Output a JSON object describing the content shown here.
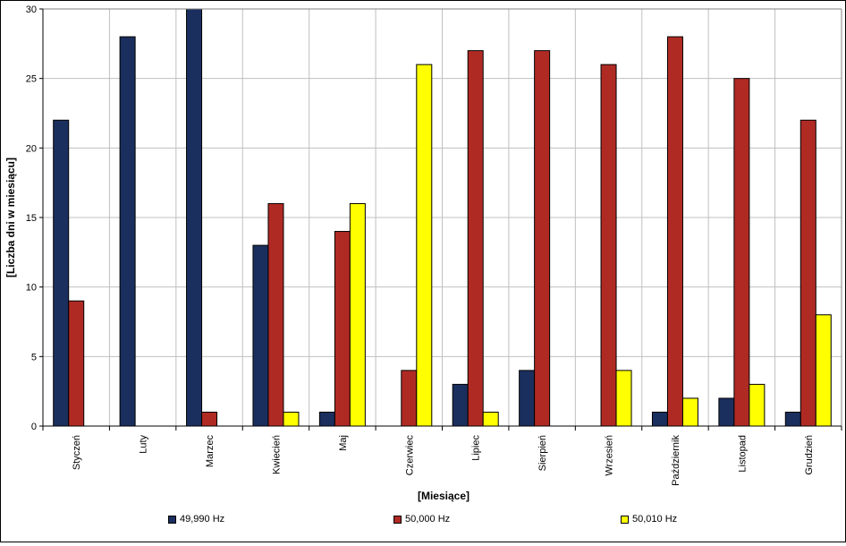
{
  "chart_data": {
    "type": "bar",
    "title": "",
    "xlabel": "[Miesiące]",
    "ylabel": "[Liczba dni w miesiącu]",
    "ylim": [
      0,
      30
    ],
    "yticks": [
      "0",
      "5",
      "10",
      "15",
      "20",
      "25",
      "30"
    ],
    "grid": true,
    "legend_position": "bottom",
    "categories": [
      "Styczeń",
      "Luty",
      "Marzec",
      "Kwiecień",
      "Maj",
      "Czerwiec",
      "Lipiec",
      "Sierpień",
      "Wrzesień",
      "Październik",
      "Listopad",
      "Grudzień"
    ],
    "series": [
      {
        "name": "49,990 Hz",
        "color": "#1b2f5e",
        "values": [
          22,
          28,
          30,
          13,
          1,
          0,
          3,
          4,
          0,
          1,
          2,
          1
        ]
      },
      {
        "name": "50,000 Hz",
        "color": "#b02a24",
        "values": [
          9,
          0,
          1,
          16,
          14,
          4,
          27,
          27,
          26,
          28,
          25,
          22
        ]
      },
      {
        "name": "50,010 Hz",
        "color": "#ffff00",
        "values": [
          0,
          0,
          0,
          1,
          16,
          26,
          1,
          0,
          4,
          2,
          3,
          8
        ]
      }
    ]
  }
}
